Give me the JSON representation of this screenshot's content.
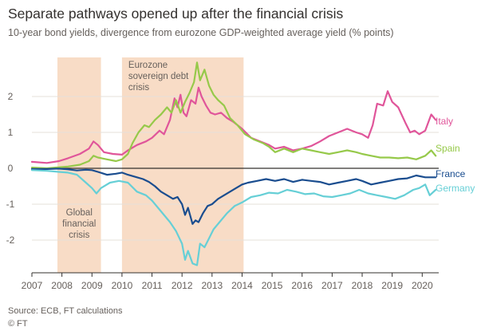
{
  "header": {
    "title": "Separate pathways opened up after the financial crisis",
    "subtitle": "10-year bond yields, divergence from eurozone GDP-weighted average yield (% points)"
  },
  "footer": {
    "source": "Source: ECB, FT calculations",
    "credit": "© FT"
  },
  "colors": {
    "Italy": "#e0559a",
    "Spain": "#96c94a",
    "France": "#1a4d8f",
    "Germany": "#66cfd6",
    "shade": "#f8dcc6",
    "axis_text": "#66605c",
    "grid": "#e6e0da",
    "zero": "#33302e"
  },
  "chart_data": {
    "type": "line",
    "title": "Separate pathways opened up after the financial crisis",
    "subtitle": "10-year bond yields, divergence from eurozone GDP-weighted average yield (% points)",
    "xlabel": "",
    "ylabel": "",
    "xlim": [
      2007.0,
      2020.55
    ],
    "ylim": [
      -2.8,
      3.0
    ],
    "x_ticks": [
      "2007",
      "2008",
      "2009",
      "2010",
      "2011",
      "2012",
      "2013",
      "2014",
      "2015",
      "2016",
      "2017",
      "2018",
      "2019",
      "2020"
    ],
    "y_ticks": [
      2,
      1,
      0,
      -1,
      -2
    ],
    "y_tick_labels": [
      "2",
      "1",
      "0",
      "-1",
      "-2"
    ],
    "grid": "horizontal",
    "legend": "inline labels at right end of each line",
    "shaded_periods": [
      {
        "start": 2007.85,
        "end": 2009.3,
        "label_lines": [
          "Global",
          "financial",
          "crisis"
        ]
      },
      {
        "start": 2010.0,
        "end": 2014.05,
        "label_lines": [
          "Eurozone",
          "sovereign debt",
          "crisis"
        ]
      }
    ],
    "series": [
      {
        "name": "Italy",
        "points": [
          [
            2007.0,
            0.18
          ],
          [
            2007.5,
            0.15
          ],
          [
            2007.9,
            0.2
          ],
          [
            2008.2,
            0.28
          ],
          [
            2008.6,
            0.4
          ],
          [
            2008.9,
            0.55
          ],
          [
            2009.05,
            0.75
          ],
          [
            2009.2,
            0.65
          ],
          [
            2009.4,
            0.45
          ],
          [
            2009.7,
            0.4
          ],
          [
            2010.0,
            0.38
          ],
          [
            2010.2,
            0.5
          ],
          [
            2010.5,
            0.65
          ],
          [
            2010.8,
            0.75
          ],
          [
            2011.0,
            0.85
          ],
          [
            2011.25,
            1.05
          ],
          [
            2011.4,
            0.95
          ],
          [
            2011.6,
            1.35
          ],
          [
            2011.75,
            1.95
          ],
          [
            2011.85,
            1.7
          ],
          [
            2011.95,
            2.05
          ],
          [
            2012.05,
            1.55
          ],
          [
            2012.15,
            1.45
          ],
          [
            2012.3,
            1.9
          ],
          [
            2012.45,
            1.8
          ],
          [
            2012.55,
            2.25
          ],
          [
            2012.65,
            2.0
          ],
          [
            2012.8,
            1.75
          ],
          [
            2012.95,
            1.55
          ],
          [
            2013.1,
            1.5
          ],
          [
            2013.3,
            1.55
          ],
          [
            2013.5,
            1.4
          ],
          [
            2013.7,
            1.3
          ],
          [
            2014.0,
            1.1
          ],
          [
            2014.3,
            0.85
          ],
          [
            2014.6,
            0.75
          ],
          [
            2014.9,
            0.65
          ],
          [
            2015.1,
            0.55
          ],
          [
            2015.4,
            0.6
          ],
          [
            2015.7,
            0.5
          ],
          [
            2016.0,
            0.55
          ],
          [
            2016.3,
            0.62
          ],
          [
            2016.6,
            0.75
          ],
          [
            2016.9,
            0.9
          ],
          [
            2017.2,
            1.0
          ],
          [
            2017.5,
            1.1
          ],
          [
            2017.8,
            1.0
          ],
          [
            2018.0,
            0.95
          ],
          [
            2018.2,
            0.85
          ],
          [
            2018.35,
            1.2
          ],
          [
            2018.5,
            1.8
          ],
          [
            2018.7,
            1.75
          ],
          [
            2018.85,
            2.15
          ],
          [
            2019.0,
            1.85
          ],
          [
            2019.2,
            1.7
          ],
          [
            2019.45,
            1.25
          ],
          [
            2019.6,
            1.0
          ],
          [
            2019.75,
            1.05
          ],
          [
            2019.9,
            0.95
          ],
          [
            2020.1,
            1.05
          ],
          [
            2020.3,
            1.5
          ],
          [
            2020.45,
            1.35
          ]
        ]
      },
      {
        "name": "Spain",
        "points": [
          [
            2007.0,
            0.02
          ],
          [
            2007.5,
            0.0
          ],
          [
            2007.9,
            0.03
          ],
          [
            2008.2,
            0.05
          ],
          [
            2008.6,
            0.1
          ],
          [
            2008.9,
            0.2
          ],
          [
            2009.05,
            0.35
          ],
          [
            2009.2,
            0.3
          ],
          [
            2009.5,
            0.25
          ],
          [
            2009.8,
            0.2
          ],
          [
            2010.0,
            0.25
          ],
          [
            2010.2,
            0.4
          ],
          [
            2010.35,
            0.7
          ],
          [
            2010.55,
            1.0
          ],
          [
            2010.75,
            1.2
          ],
          [
            2010.9,
            1.15
          ],
          [
            2011.1,
            1.35
          ],
          [
            2011.3,
            1.5
          ],
          [
            2011.5,
            1.7
          ],
          [
            2011.65,
            1.55
          ],
          [
            2011.8,
            1.9
          ],
          [
            2011.95,
            1.55
          ],
          [
            2012.1,
            1.85
          ],
          [
            2012.25,
            2.1
          ],
          [
            2012.4,
            2.4
          ],
          [
            2012.5,
            2.95
          ],
          [
            2012.6,
            2.45
          ],
          [
            2012.75,
            2.75
          ],
          [
            2012.9,
            2.3
          ],
          [
            2013.05,
            2.05
          ],
          [
            2013.2,
            1.9
          ],
          [
            2013.4,
            1.75
          ],
          [
            2013.6,
            1.4
          ],
          [
            2013.85,
            1.2
          ],
          [
            2014.1,
            0.95
          ],
          [
            2014.4,
            0.8
          ],
          [
            2014.7,
            0.7
          ],
          [
            2014.9,
            0.6
          ],
          [
            2015.1,
            0.45
          ],
          [
            2015.4,
            0.55
          ],
          [
            2015.7,
            0.45
          ],
          [
            2016.0,
            0.55
          ],
          [
            2016.3,
            0.5
          ],
          [
            2016.6,
            0.45
          ],
          [
            2016.9,
            0.4
          ],
          [
            2017.2,
            0.45
          ],
          [
            2017.5,
            0.5
          ],
          [
            2017.8,
            0.45
          ],
          [
            2018.0,
            0.4
          ],
          [
            2018.3,
            0.35
          ],
          [
            2018.6,
            0.3
          ],
          [
            2018.9,
            0.3
          ],
          [
            2019.2,
            0.28
          ],
          [
            2019.5,
            0.3
          ],
          [
            2019.8,
            0.25
          ],
          [
            2020.1,
            0.35
          ],
          [
            2020.3,
            0.5
          ],
          [
            2020.45,
            0.35
          ]
        ]
      },
      {
        "name": "France",
        "points": [
          [
            2007.0,
            -0.02
          ],
          [
            2007.5,
            -0.02
          ],
          [
            2007.9,
            -0.01
          ],
          [
            2008.2,
            -0.03
          ],
          [
            2008.5,
            -0.06
          ],
          [
            2008.8,
            -0.04
          ],
          [
            2009.0,
            -0.05
          ],
          [
            2009.2,
            -0.1
          ],
          [
            2009.5,
            -0.18
          ],
          [
            2009.8,
            -0.15
          ],
          [
            2010.0,
            -0.12
          ],
          [
            2010.2,
            -0.18
          ],
          [
            2010.5,
            -0.25
          ],
          [
            2010.7,
            -0.3
          ],
          [
            2010.9,
            -0.38
          ],
          [
            2011.1,
            -0.5
          ],
          [
            2011.3,
            -0.65
          ],
          [
            2011.5,
            -0.75
          ],
          [
            2011.7,
            -0.85
          ],
          [
            2011.85,
            -0.8
          ],
          [
            2012.0,
            -1.0
          ],
          [
            2012.1,
            -1.3
          ],
          [
            2012.2,
            -1.1
          ],
          [
            2012.35,
            -1.55
          ],
          [
            2012.45,
            -1.45
          ],
          [
            2012.55,
            -1.5
          ],
          [
            2012.7,
            -1.25
          ],
          [
            2012.85,
            -1.05
          ],
          [
            2013.0,
            -1.0
          ],
          [
            2013.2,
            -0.85
          ],
          [
            2013.4,
            -0.75
          ],
          [
            2013.6,
            -0.65
          ],
          [
            2013.8,
            -0.55
          ],
          [
            2014.0,
            -0.45
          ],
          [
            2014.2,
            -0.4
          ],
          [
            2014.5,
            -0.35
          ],
          [
            2014.8,
            -0.3
          ],
          [
            2015.1,
            -0.35
          ],
          [
            2015.4,
            -0.3
          ],
          [
            2015.7,
            -0.38
          ],
          [
            2016.0,
            -0.32
          ],
          [
            2016.3,
            -0.35
          ],
          [
            2016.6,
            -0.38
          ],
          [
            2016.9,
            -0.45
          ],
          [
            2017.2,
            -0.4
          ],
          [
            2017.5,
            -0.35
          ],
          [
            2017.8,
            -0.3
          ],
          [
            2018.0,
            -0.35
          ],
          [
            2018.3,
            -0.45
          ],
          [
            2018.6,
            -0.4
          ],
          [
            2018.9,
            -0.35
          ],
          [
            2019.2,
            -0.3
          ],
          [
            2019.5,
            -0.28
          ],
          [
            2019.8,
            -0.2
          ],
          [
            2020.1,
            -0.25
          ],
          [
            2020.45,
            -0.25
          ]
        ]
      },
      {
        "name": "Germany",
        "points": [
          [
            2007.0,
            -0.05
          ],
          [
            2007.5,
            -0.07
          ],
          [
            2007.9,
            -0.1
          ],
          [
            2008.2,
            -0.12
          ],
          [
            2008.5,
            -0.18
          ],
          [
            2008.8,
            -0.4
          ],
          [
            2009.0,
            -0.55
          ],
          [
            2009.15,
            -0.7
          ],
          [
            2009.3,
            -0.55
          ],
          [
            2009.6,
            -0.4
          ],
          [
            2009.9,
            -0.35
          ],
          [
            2010.2,
            -0.4
          ],
          [
            2010.5,
            -0.65
          ],
          [
            2010.8,
            -0.75
          ],
          [
            2011.0,
            -0.9
          ],
          [
            2011.2,
            -1.1
          ],
          [
            2011.4,
            -1.3
          ],
          [
            2011.6,
            -1.5
          ],
          [
            2011.8,
            -1.75
          ],
          [
            2012.0,
            -2.1
          ],
          [
            2012.1,
            -2.55
          ],
          [
            2012.2,
            -2.3
          ],
          [
            2012.35,
            -2.65
          ],
          [
            2012.5,
            -2.7
          ],
          [
            2012.6,
            -2.1
          ],
          [
            2012.75,
            -2.2
          ],
          [
            2012.9,
            -1.95
          ],
          [
            2013.05,
            -1.7
          ],
          [
            2013.25,
            -1.5
          ],
          [
            2013.5,
            -1.25
          ],
          [
            2013.75,
            -1.05
          ],
          [
            2014.0,
            -0.95
          ],
          [
            2014.3,
            -0.8
          ],
          [
            2014.6,
            -0.75
          ],
          [
            2014.9,
            -0.68
          ],
          [
            2015.2,
            -0.7
          ],
          [
            2015.5,
            -0.6
          ],
          [
            2015.8,
            -0.65
          ],
          [
            2016.1,
            -0.72
          ],
          [
            2016.4,
            -0.7
          ],
          [
            2016.7,
            -0.78
          ],
          [
            2017.0,
            -0.8
          ],
          [
            2017.3,
            -0.75
          ],
          [
            2017.6,
            -0.7
          ],
          [
            2017.9,
            -0.6
          ],
          [
            2018.2,
            -0.7
          ],
          [
            2018.5,
            -0.75
          ],
          [
            2018.8,
            -0.8
          ],
          [
            2019.1,
            -0.85
          ],
          [
            2019.4,
            -0.75
          ],
          [
            2019.7,
            -0.6
          ],
          [
            2019.9,
            -0.55
          ],
          [
            2020.1,
            -0.45
          ],
          [
            2020.25,
            -0.75
          ],
          [
            2020.45,
            -0.6
          ]
        ]
      }
    ]
  }
}
